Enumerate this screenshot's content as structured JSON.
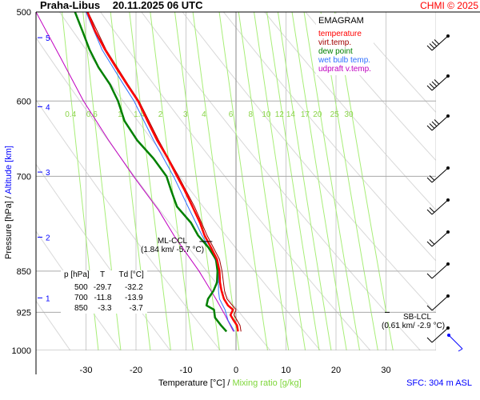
{
  "header": {
    "station": "Praha-Libus",
    "datetime": "20.11.2025 06 UTC",
    "credit": "CHMI © 2025"
  },
  "footer": {
    "sfc": "SFC: 304 m ASL"
  },
  "chart_data": {
    "type": "line",
    "title": "EMAGRAM",
    "xlabel": "Temperature [°C]",
    "xlabel2": "Mixing ratio [g/kg]",
    "ylabel": "Pressure [hPa]",
    "ylabel2": "Altitude [km]",
    "xlim": [
      -40,
      40
    ],
    "ylim": [
      1000,
      500
    ],
    "yscale": "log",
    "grid": true,
    "x_ticks": [
      -30,
      -20,
      -10,
      0,
      10,
      20,
      30
    ],
    "y_ticks": [
      500,
      600,
      700,
      850,
      925,
      1000
    ],
    "altitude_ticks": [
      {
        "km": "5",
        "p": 527
      },
      {
        "km": "4",
        "p": 607
      },
      {
        "km": "3",
        "p": 694
      },
      {
        "km": "2",
        "p": 793
      },
      {
        "km": "1",
        "p": 898
      }
    ],
    "mixing_ratio_labels": [
      "0.4",
      "0.6",
      "1",
      "1.4",
      "2",
      "3",
      "4",
      "6",
      "8",
      "10",
      "12",
      "14",
      "17",
      "20",
      "25",
      "30"
    ],
    "legend": {
      "placement": "top-right",
      "items": [
        {
          "label": "temperature",
          "color": "#ff0000"
        },
        {
          "label": "virt.temp.",
          "color": "#a00000"
        },
        {
          "label": "dew point",
          "color": "#008000"
        },
        {
          "label": "wet bulb temp.",
          "color": "#3070ff"
        },
        {
          "label": "udpraft v.temp.",
          "color": "#c000c0"
        }
      ]
    },
    "series": [
      {
        "name": "temperature",
        "color": "#ff0000",
        "points": [
          [
            500,
            -29.7
          ],
          [
            520,
            -28.2
          ],
          [
            540,
            -26.2
          ],
          [
            560,
            -24
          ],
          [
            580,
            -21.8
          ],
          [
            600,
            -19.6
          ],
          [
            625,
            -17.7
          ],
          [
            650,
            -15.8
          ],
          [
            675,
            -13.6
          ],
          [
            700,
            -11.8
          ],
          [
            720,
            -10.3
          ],
          [
            745,
            -8.7
          ],
          [
            770,
            -7.2
          ],
          [
            790,
            -6.3
          ],
          [
            810,
            -5
          ],
          [
            830,
            -3.8
          ],
          [
            850,
            -3.3
          ],
          [
            870,
            -3.2
          ],
          [
            885,
            -2.9
          ],
          [
            900,
            -2.4
          ],
          [
            912,
            -1.6
          ],
          [
            920,
            -0.6
          ],
          [
            930,
            -1.1
          ],
          [
            940,
            -0.5
          ],
          [
            950,
            0.2
          ],
          [
            962,
            0.4
          ]
        ]
      },
      {
        "name": "virt.temp.",
        "color": "#a00000",
        "points": [
          [
            500,
            -29.6
          ],
          [
            540,
            -26
          ],
          [
            580,
            -21.6
          ],
          [
            600,
            -19.4
          ],
          [
            650,
            -15.5
          ],
          [
            700,
            -11.5
          ],
          [
            745,
            -8.3
          ],
          [
            790,
            -5.8
          ],
          [
            830,
            -3.3
          ],
          [
            850,
            -2.8
          ],
          [
            885,
            -2.3
          ],
          [
            900,
            -1.8
          ],
          [
            920,
            0
          ],
          [
            930,
            -0.4
          ],
          [
            950,
            0.8
          ],
          [
            962,
            1
          ]
        ]
      },
      {
        "name": "dew point",
        "color": "#008000",
        "points": [
          [
            500,
            -32.2
          ],
          [
            520,
            -30.7
          ],
          [
            540,
            -29.3
          ],
          [
            560,
            -27.5
          ],
          [
            580,
            -25.2
          ],
          [
            600,
            -23.6
          ],
          [
            625,
            -22.3
          ],
          [
            650,
            -19.8
          ],
          [
            675,
            -16.5
          ],
          [
            700,
            -13.9
          ],
          [
            720,
            -13
          ],
          [
            745,
            -11.8
          ],
          [
            770,
            -9
          ],
          [
            790,
            -7.6
          ],
          [
            810,
            -5.5
          ],
          [
            830,
            -4
          ],
          [
            850,
            -3.7
          ],
          [
            870,
            -3.8
          ],
          [
            885,
            -4.5
          ],
          [
            900,
            -5.6
          ],
          [
            912,
            -5.9
          ],
          [
            920,
            -4.4
          ],
          [
            935,
            -4.2
          ],
          [
            950,
            -3
          ],
          [
            962,
            -1.9
          ]
        ]
      },
      {
        "name": "wet bulb temp.",
        "color": "#3070ff",
        "points": [
          [
            500,
            -30
          ],
          [
            540,
            -26.8
          ],
          [
            580,
            -22.5
          ],
          [
            600,
            -20.4
          ],
          [
            650,
            -16.5
          ],
          [
            700,
            -12.5
          ],
          [
            745,
            -9.6
          ],
          [
            790,
            -6.8
          ],
          [
            830,
            -4.2
          ],
          [
            850,
            -3.5
          ],
          [
            885,
            -3.5
          ],
          [
            900,
            -3.3
          ],
          [
            920,
            -2.2
          ],
          [
            940,
            -1.6
          ],
          [
            962,
            -0.3
          ]
        ]
      },
      {
        "name": "udpraft v.temp.",
        "color": "#c000c0",
        "points": [
          [
            500,
            -40
          ],
          [
            550,
            -35
          ],
          [
            600,
            -30.5
          ],
          [
            650,
            -25.5
          ],
          [
            700,
            -20.5
          ],
          [
            750,
            -15.5
          ],
          [
            793,
            -12.2
          ],
          [
            850,
            -7.4
          ],
          [
            900,
            -4
          ],
          [
            930,
            -2.2
          ],
          [
            962,
            -0.5
          ]
        ]
      }
    ],
    "annotations": [
      {
        "label": "ML-CCL",
        "detail": "(1.84 km/ -5.7 °C)",
        "p": 800,
        "t": -5.7
      },
      {
        "label": "SB-LCL",
        "detail": "(0.61 km/ -2.9 °C)",
        "p": 928,
        "t": 30
      }
    ],
    "table": {
      "headers": [
        "p [hPa]",
        "T",
        "Td [°C]"
      ],
      "rows": [
        [
          "500",
          "-29.7",
          "-32.2"
        ],
        [
          "700",
          "-11.8",
          "-13.9"
        ],
        [
          "850",
          "-3.3",
          "-3.7"
        ]
      ]
    }
  }
}
